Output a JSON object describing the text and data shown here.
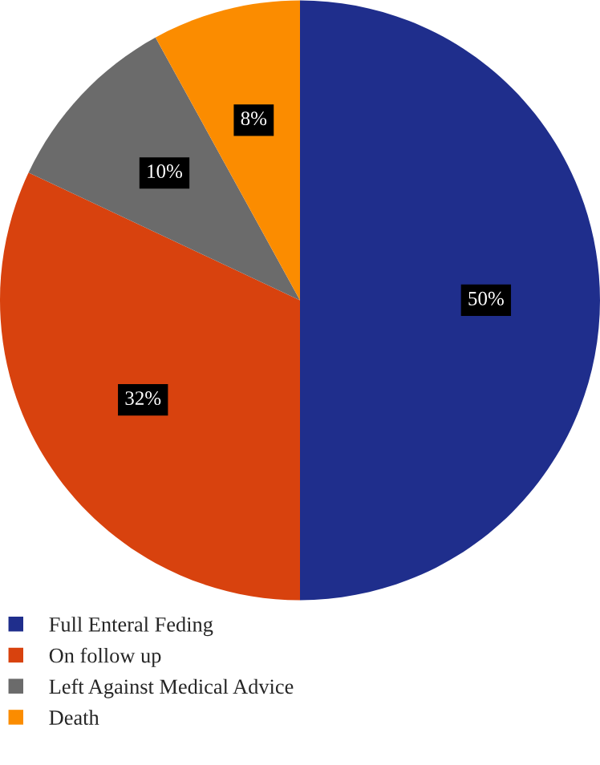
{
  "chart_data": {
    "type": "pie",
    "categories": [
      "Full Enteral Feding",
      "On follow up",
      "Left Against Medical Advice",
      "Death"
    ],
    "values": [
      50,
      32,
      10,
      8
    ],
    "value_labels": [
      "50%",
      "32%",
      "10%",
      "8%"
    ],
    "colors": [
      "#1f2e8c",
      "#d8420e",
      "#6b6b6b",
      "#fb8c00"
    ],
    "legend": "bottom left"
  }
}
